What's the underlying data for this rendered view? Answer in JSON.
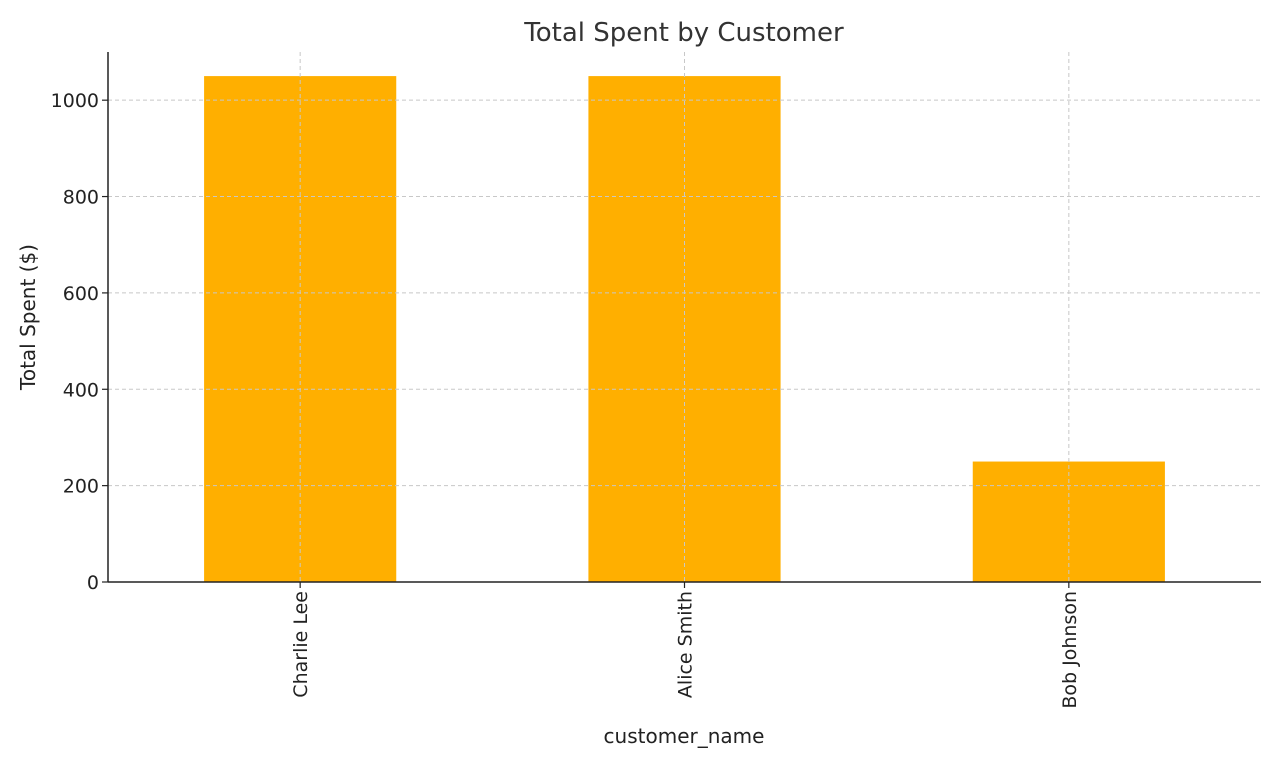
{
  "chart_data": {
    "type": "bar",
    "title": "Total Spent by Customer",
    "xlabel": "customer_name",
    "ylabel": "Total Spent ($)",
    "categories": [
      "Charlie Lee",
      "Alice Smith",
      "Bob Johnson"
    ],
    "values": [
      1050,
      1050,
      250
    ],
    "ylim": [
      0,
      1100
    ],
    "yticks": [
      0,
      200,
      400,
      600,
      800,
      1000
    ],
    "bar_color": "#FFAF00",
    "grid": true,
    "x_tick_rotation": "vertical"
  }
}
